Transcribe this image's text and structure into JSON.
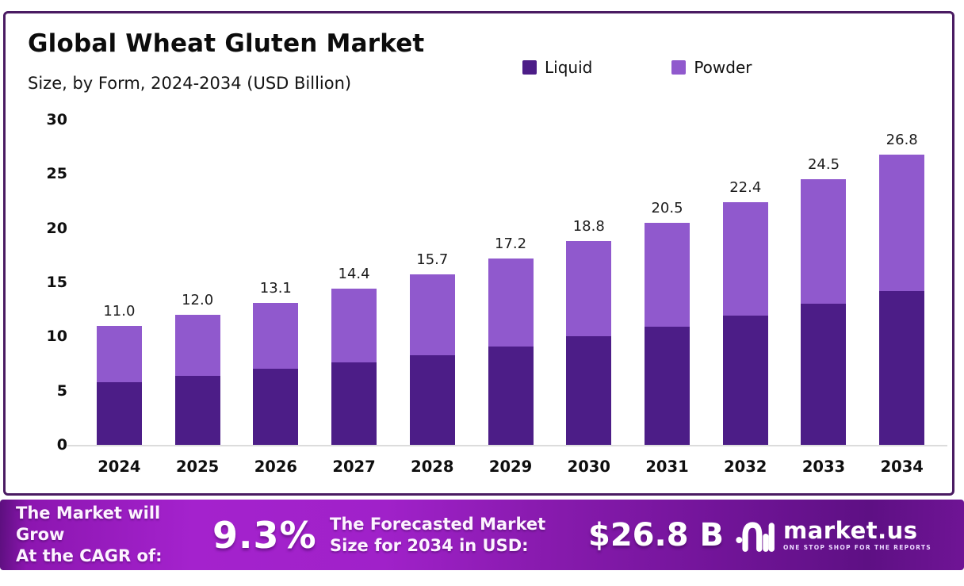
{
  "header": {
    "title": "Global Wheat Gluten Market",
    "subtitle": "Size, by Form, 2024-2034 (USD Billion)"
  },
  "chart_data": {
    "type": "bar",
    "stacked": true,
    "title": "Global Wheat Gluten Market Size, by Form, 2024-2034 (USD Billion)",
    "categories": [
      "2024",
      "2025",
      "2026",
      "2027",
      "2028",
      "2029",
      "2030",
      "2031",
      "2032",
      "2033",
      "2034"
    ],
    "series": [
      {
        "name": "Liquid",
        "color": "#4c1d87",
        "values": [
          5.8,
          6.4,
          7.0,
          7.6,
          8.3,
          9.1,
          10.0,
          10.9,
          11.9,
          13.0,
          14.2
        ]
      },
      {
        "name": "Powder",
        "color": "#9059cd",
        "values": [
          5.2,
          5.6,
          6.1,
          6.8,
          7.4,
          8.1,
          8.8,
          9.6,
          10.5,
          11.5,
          12.6
        ]
      }
    ],
    "totals": [
      11.0,
      12.0,
      13.1,
      14.4,
      15.7,
      17.2,
      18.8,
      20.5,
      22.4,
      24.5,
      26.8
    ],
    "total_labels": [
      "11.0",
      "12.0",
      "13.1",
      "14.4",
      "15.7",
      "17.2",
      "18.8",
      "20.5",
      "22.4",
      "24.5",
      "26.8"
    ],
    "xlabel": "",
    "ylabel": "",
    "ylim": [
      0,
      30
    ],
    "yticks": [
      0,
      5,
      10,
      15,
      20,
      25,
      30
    ],
    "grid": false,
    "legend_position": "top-right"
  },
  "banner": {
    "cagr_label_line1": "The Market will Grow",
    "cagr_label_line2": "At the CAGR of:",
    "cagr_value": "9.3%",
    "forecast_label_line1": "The Forecasted Market",
    "forecast_label_line2": "Size for 2034 in USD:",
    "forecast_value": "$26.8 B",
    "brand": "market.us",
    "brand_tagline": "ONE STOP SHOP FOR THE REPORTS"
  },
  "colors": {
    "liquid": "#4c1d87",
    "powder": "#9059cd",
    "card_border": "#4a1b62",
    "axis_line": "#dcdcdc",
    "banner_gradient_start": "#a422cd",
    "banner_gradient_end": "#5e1084"
  }
}
